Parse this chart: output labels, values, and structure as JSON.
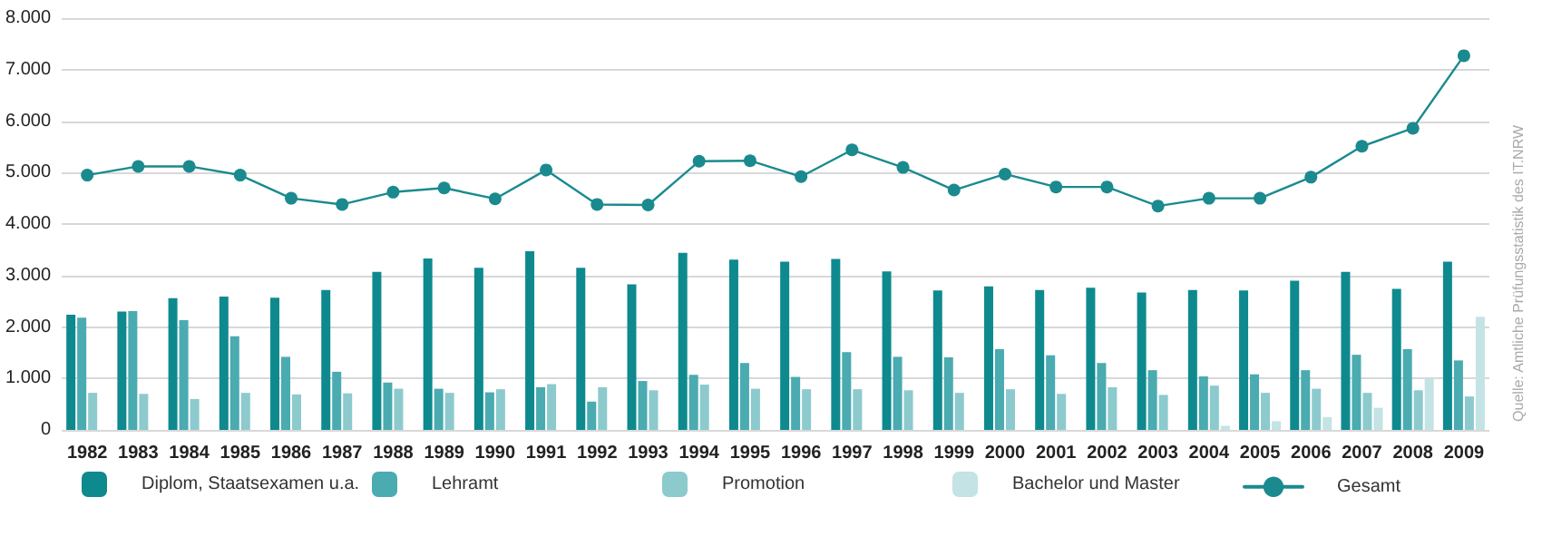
{
  "chart_data": {
    "type": "bar",
    "categories": [
      "1982",
      "1983",
      "1984",
      "1985",
      "1986",
      "1987",
      "1988",
      "1989",
      "1990",
      "1991",
      "1992",
      "1993",
      "1994",
      "1995",
      "1996",
      "1997",
      "1998",
      "1999",
      "2000",
      "2001",
      "2002",
      "2003",
      "2004",
      "2005",
      "2006",
      "2007",
      "2008",
      "2009"
    ],
    "series": [
      {
        "name": "Diplom, Staatsexamen u.a.",
        "color": "#0e8a8f",
        "values": [
          2240,
          2300,
          2560,
          2590,
          2570,
          2720,
          3070,
          3330,
          3150,
          3470,
          3150,
          2830,
          3440,
          3310,
          3270,
          3320,
          3080,
          2710,
          2790,
          2720,
          2760,
          2670,
          2720,
          2710,
          2900,
          3070,
          2740,
          3270
        ]
      },
      {
        "name": "Lehramt",
        "color": "#4aabb0",
        "values": [
          2180,
          2310,
          2130,
          1820,
          1420,
          1130,
          920,
          800,
          730,
          830,
          550,
          950,
          1070,
          1300,
          1030,
          1510,
          1420,
          1410,
          1570,
          1450,
          1300,
          1160,
          1040,
          1080,
          1160,
          1460,
          1570,
          1350
        ]
      },
      {
        "name": "Promotion",
        "color": "#8ccacd",
        "values": [
          720,
          700,
          600,
          720,
          690,
          710,
          800,
          720,
          790,
          890,
          830,
          770,
          880,
          800,
          790,
          790,
          770,
          720,
          790,
          700,
          830,
          680,
          860,
          720,
          800,
          720,
          770,
          650
        ]
      },
      {
        "name": "Bachelor und Master",
        "color": "#c3e3e5",
        "values": [
          null,
          null,
          null,
          null,
          null,
          null,
          null,
          null,
          null,
          null,
          null,
          null,
          null,
          null,
          null,
          null,
          null,
          null,
          null,
          null,
          null,
          null,
          80,
          170,
          250,
          430,
          1000,
          2200
        ]
      },
      {
        "name": "Gesamt",
        "type": "line",
        "color": "#1a8a8f",
        "marker": "circle",
        "values": [
          4950,
          5120,
          5120,
          4950,
          4500,
          4380,
          4620,
          4700,
          4490,
          5050,
          4380,
          4370,
          5220,
          5230,
          4920,
          5440,
          5100,
          4660,
          4970,
          4720,
          4720,
          4350,
          4500,
          4500,
          4910,
          5510,
          5860,
          7270
        ]
      }
    ],
    "ylim": [
      0,
      8000
    ],
    "yticks": [
      0,
      {
        "value": 1000,
        "label": "1.000"
      },
      {
        "value": 2000,
        "label": "2.000"
      },
      {
        "value": 3000,
        "label": "3.000"
      },
      {
        "value": 4000,
        "label": "4.000"
      },
      {
        "value": 5000,
        "label": "5.000"
      },
      {
        "value": 6000,
        "label": "6.000"
      },
      {
        "value": 7000,
        "label": "7.000"
      },
      {
        "value": 8000,
        "label": "8.000"
      }
    ],
    "grid": "y",
    "legend": "bottom",
    "annotations": [
      "Quelle: Amtliche Prüfungsstatistik des IT.NRW"
    ]
  }
}
